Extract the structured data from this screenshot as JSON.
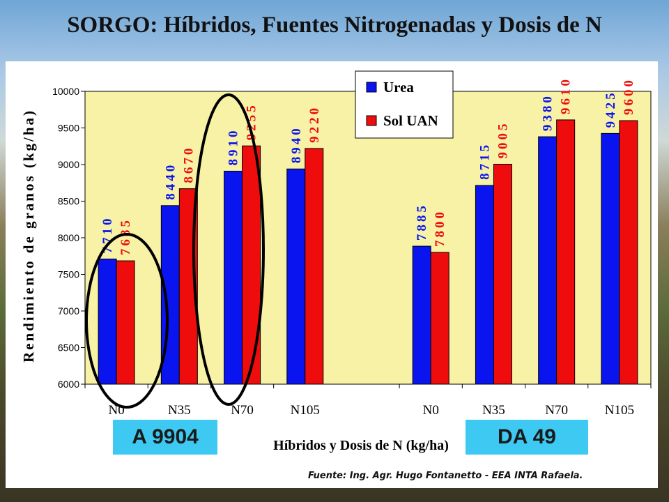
{
  "title": "SORGO: Híbridos, Fuentes Nitrogenadas y Dosis de N",
  "source_note": "Fuente: Ing. Agr. Hugo Fontanetto - EEA INTA Rafaela.",
  "group_labels": [
    "A 9904",
    "DA 49"
  ],
  "colors": {
    "urea": "#0a14ee",
    "sol_uan": "#ee0c0c",
    "plot_bg": "#f7f2a6",
    "group_label_bg": "#3ec9f2"
  },
  "chart_data": {
    "type": "bar",
    "xlabel": "Híbridos y Dosis de N (kg/ha)",
    "ylabel": "Rendimiento de granos (kg/ha)",
    "ylim": [
      6000,
      10000
    ],
    "yticks": [
      6000,
      6500,
      7000,
      7500,
      8000,
      8500,
      9000,
      9500,
      10000
    ],
    "categories": [
      "N0",
      "N35",
      "N70",
      "N105",
      "N0",
      "N35",
      "N70",
      "N105"
    ],
    "series": [
      {
        "name": "Urea",
        "color": "#0a14ee",
        "values": [
          7710,
          8440,
          8910,
          8940,
          7885,
          8715,
          9380,
          9425
        ]
      },
      {
        "name": "Sol UAN",
        "color": "#ee0c0c",
        "values": [
          7685,
          8670,
          9255,
          9220,
          7800,
          9005,
          9610,
          9600
        ]
      }
    ],
    "legend": "top-right",
    "grid": false
  }
}
